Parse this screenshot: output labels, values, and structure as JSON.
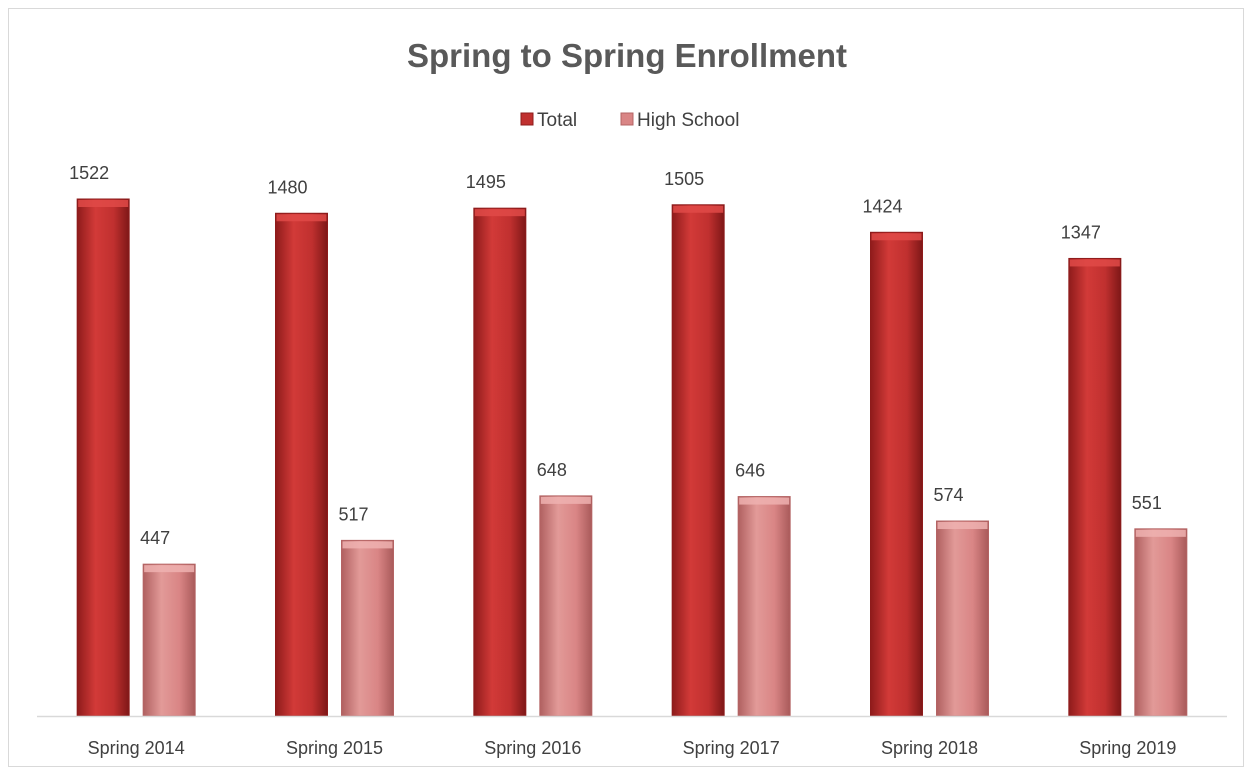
{
  "colors": {
    "total": "#c0302f",
    "total_dark": "#8e1b1b",
    "total_light": "#e04a48",
    "high_school": "#d98585",
    "high_school_dark": "#b46464",
    "high_school_light": "#efb2b0",
    "axis": "#d9d9d9",
    "text": "#404040",
    "title": "#595959"
  },
  "chart_data": {
    "type": "bar",
    "title": "Spring to Spring Enrollment",
    "xlabel": "",
    "ylabel": "",
    "categories": [
      "Spring 2014",
      "Spring 2015",
      "Spring 2016",
      "Spring 2017",
      "Spring 2018",
      "Spring 2019"
    ],
    "series": [
      {
        "name": "Total",
        "values": [
          1522,
          1480,
          1495,
          1505,
          1424,
          1347
        ]
      },
      {
        "name": "High School",
        "values": [
          447,
          517,
          648,
          646,
          574,
          551
        ]
      }
    ],
    "ylim": [
      0,
      1600
    ],
    "grid": false,
    "legend": "top-center",
    "data_labels": true
  }
}
